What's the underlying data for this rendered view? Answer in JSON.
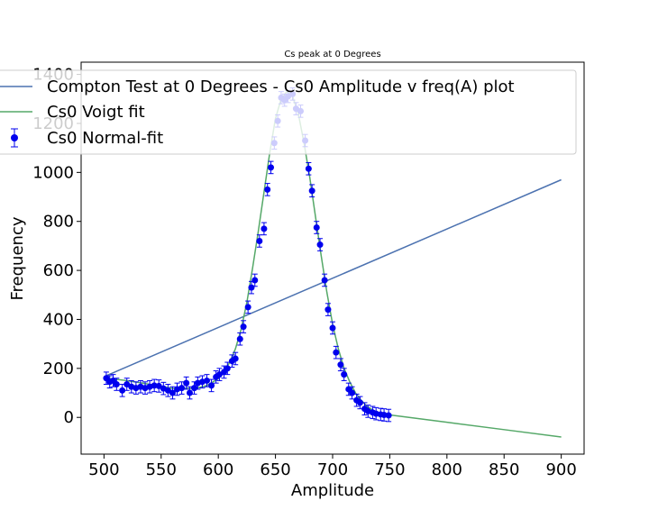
{
  "chart_data": {
    "type": "line",
    "title": "Cs peak at 0 Degrees",
    "xlabel": "Amplitude",
    "ylabel": "Frequency",
    "xlim": [
      480,
      920
    ],
    "ylim": [
      -150,
      1450
    ],
    "xticks": [
      500,
      550,
      600,
      650,
      700,
      750,
      800,
      850,
      900
    ],
    "yticks": [
      0,
      200,
      400,
      600,
      800,
      1000,
      1200,
      1400
    ],
    "grid": false,
    "legend_position": "top-left",
    "series": [
      {
        "name": "Compton Test at 0 Degrees - Cs0 Amplitude v freq(A) plot",
        "kind": "line",
        "color": "#4c72b0",
        "x": [
          502,
          900
        ],
        "y": [
          170,
          970
        ]
      },
      {
        "name": "Cs0 Voigt fit",
        "kind": "line",
        "color": "#55a868",
        "x": [
          502,
          520,
          540,
          560,
          580,
          590,
          600,
          605,
          610,
          615,
          620,
          625,
          630,
          635,
          640,
          645,
          650,
          655,
          660,
          665,
          670,
          675,
          680,
          685,
          690,
          695,
          700,
          705,
          710,
          715,
          720,
          725,
          730,
          735,
          740,
          745,
          750,
          800,
          850,
          900
        ],
        "y": [
          160,
          150,
          135,
          118,
          118,
          130,
          158,
          185,
          225,
          280,
          360,
          470,
          610,
          760,
          920,
          1080,
          1220,
          1300,
          1330,
          1310,
          1240,
          1120,
          980,
          820,
          660,
          510,
          380,
          280,
          200,
          145,
          100,
          70,
          45,
          30,
          20,
          15,
          10,
          -20,
          -50,
          -80
        ]
      },
      {
        "name": "Cs0 Normal-fit",
        "kind": "errorbar",
        "color": "#0000ee",
        "x": [
          502,
          505,
          508,
          511,
          516,
          520,
          524,
          528,
          532,
          536,
          540,
          544,
          548,
          552,
          556,
          560,
          564,
          568,
          572,
          575,
          579,
          582,
          586,
          590,
          594,
          598,
          601,
          605,
          608,
          612,
          615,
          619,
          622,
          626,
          629,
          632,
          636,
          640,
          643,
          646,
          649,
          652,
          655,
          658,
          661,
          665,
          668,
          672,
          676,
          679,
          682,
          686,
          689,
          693,
          696,
          700,
          703,
          707,
          710,
          714,
          717,
          721,
          724,
          728,
          731,
          735,
          738,
          742,
          745,
          749
        ],
        "y": [
          160,
          145,
          150,
          135,
          110,
          135,
          125,
          120,
          125,
          120,
          125,
          130,
          128,
          118,
          110,
          100,
          115,
          120,
          140,
          100,
          120,
          140,
          145,
          150,
          130,
          165,
          175,
          185,
          200,
          230,
          240,
          320,
          370,
          450,
          530,
          560,
          720,
          770,
          930,
          1020,
          1120,
          1210,
          1305,
          1295,
          1310,
          1320,
          1260,
          1250,
          1130,
          1015,
          925,
          775,
          705,
          560,
          440,
          365,
          265,
          215,
          175,
          115,
          100,
          70,
          60,
          35,
          25,
          20,
          15,
          12,
          10,
          8
        ],
        "yerr": 25
      }
    ]
  }
}
